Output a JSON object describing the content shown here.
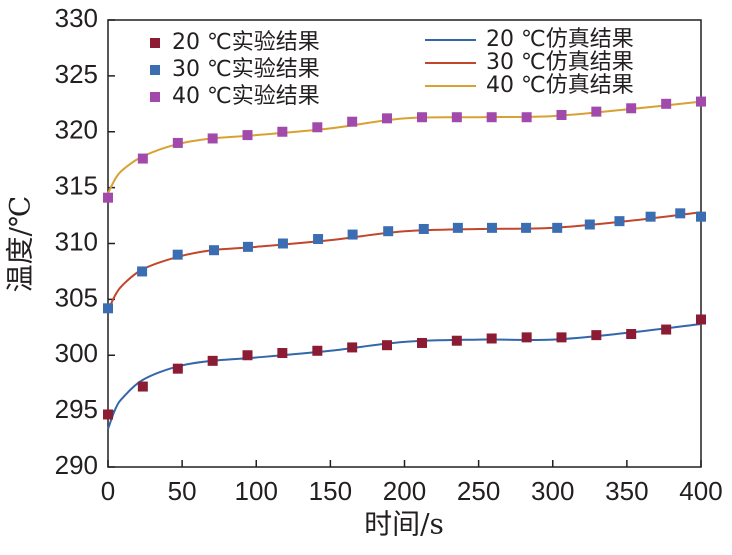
{
  "chart_data": {
    "type": "combo",
    "xlabel": "时间/s",
    "ylabel": "温度/℃",
    "xlim": [
      0,
      400
    ],
    "xticks": [
      0,
      50,
      100,
      150,
      200,
      250,
      300,
      350,
      400
    ],
    "ylim": [
      290,
      330
    ],
    "yticks": [
      290,
      295,
      300,
      305,
      310,
      315,
      320,
      325,
      330
    ],
    "series": [
      {
        "name": "20 ℃实验结果",
        "type": "scatter",
        "color": "#8b1c33",
        "x": [
          0,
          23.5,
          47.1,
          70.6,
          94.1,
          117.6,
          141.2,
          164.7,
          188.2,
          211.8,
          235.3,
          258.8,
          282.4,
          305.9,
          329.4,
          352.9,
          376.5,
          400
        ],
        "values": [
          294.7,
          297.2,
          298.8,
          299.5,
          300.0,
          300.2,
          300.4,
          300.7,
          300.9,
          301.1,
          301.3,
          301.5,
          301.6,
          301.6,
          301.8,
          301.9,
          302.3,
          303.2
        ]
      },
      {
        "name": "30 ℃实验结果",
        "type": "scatter",
        "color": "#3b6db3",
        "x": [
          0,
          23,
          47,
          71.5,
          94.4,
          118,
          141.7,
          165,
          189,
          213,
          236,
          259,
          282,
          303,
          325,
          345,
          366,
          386,
          400
        ],
        "values": [
          304.2,
          307.5,
          309.0,
          309.4,
          309.7,
          310.0,
          310.4,
          310.8,
          311.1,
          311.3,
          311.4,
          311.4,
          311.4,
          311.4,
          311.7,
          312.0,
          312.4,
          312.7,
          312.4
        ]
      },
      {
        "name": "40 ℃实验结果",
        "type": "scatter",
        "color": "#a24aab",
        "x": [
          0,
          23.5,
          47.1,
          70.6,
          94.1,
          117.6,
          141.2,
          164.7,
          188.2,
          211.8,
          235.3,
          258.8,
          282.4,
          305.9,
          329.4,
          352.9,
          376.5,
          400
        ],
        "values": [
          314.1,
          317.6,
          319.0,
          319.4,
          319.7,
          320.0,
          320.4,
          320.9,
          321.2,
          321.3,
          321.3,
          321.3,
          321.3,
          321.5,
          321.8,
          322.1,
          322.5,
          322.7
        ]
      },
      {
        "name": "20 ℃仿真结果",
        "type": "line",
        "color": "#3467a9",
        "x": [
          0,
          5,
          10,
          23.5,
          47,
          70,
          100,
          150,
          200,
          250,
          300,
          350,
          400
        ],
        "values": [
          293.4,
          295.2,
          296.2,
          297.8,
          299.0,
          299.5,
          299.8,
          300.4,
          301.2,
          301.4,
          301.4,
          302.0,
          302.8
        ]
      },
      {
        "name": "30 ℃仿真结果",
        "type": "line",
        "color": "#c1462b",
        "x": [
          0,
          5,
          10,
          23.5,
          47,
          70,
          100,
          150,
          200,
          250,
          300,
          350,
          400
        ],
        "values": [
          304.0,
          305.4,
          306.3,
          307.7,
          308.8,
          309.4,
          309.7,
          310.3,
          311.1,
          311.3,
          311.4,
          312.0,
          312.8
        ]
      },
      {
        "name": "40 ℃仿真结果",
        "type": "line",
        "color": "#d9a032",
        "x": [
          0,
          5,
          10,
          23.5,
          47,
          70,
          100,
          150,
          200,
          250,
          300,
          350,
          400
        ],
        "values": [
          314.5,
          315.8,
          316.6,
          317.8,
          318.9,
          319.4,
          319.7,
          320.3,
          321.2,
          321.3,
          321.4,
          322.0,
          322.7
        ]
      }
    ]
  }
}
